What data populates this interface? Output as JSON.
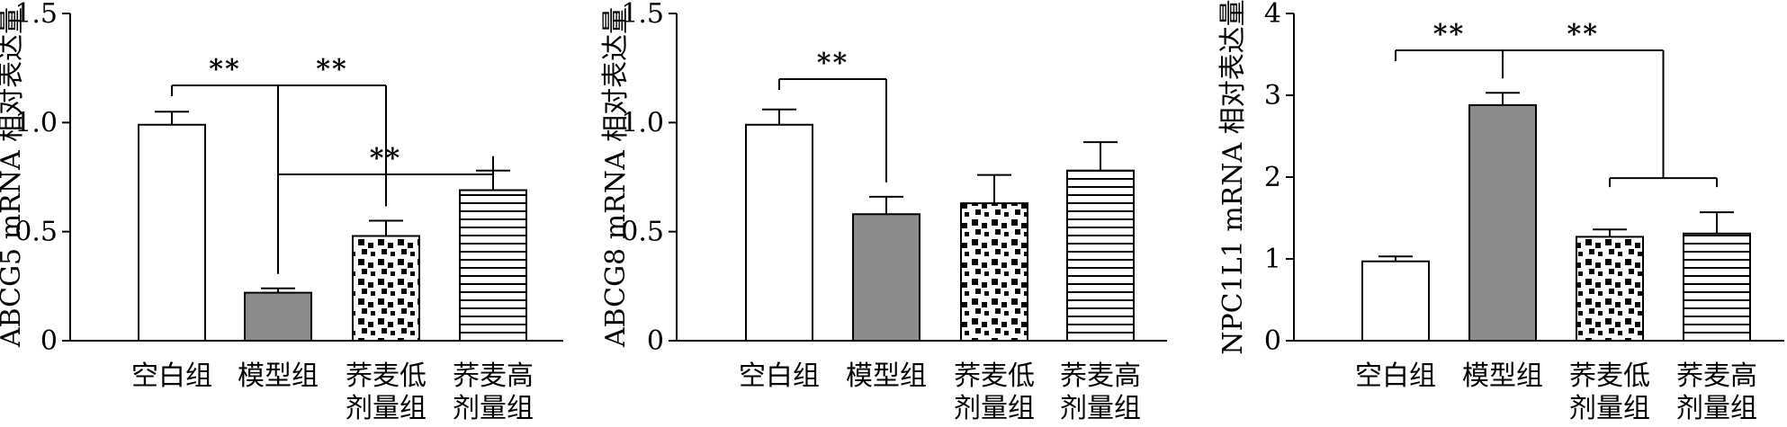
{
  "colors": {
    "model_fill": "#8c8c8c",
    "outline": "#000000",
    "background": "#ffffff"
  },
  "chart_data": [
    {
      "type": "bar",
      "ylabel": "ABCG5 mRNA 相对表达量",
      "ylim": [
        0,
        1.5
      ],
      "yticks": [
        "0",
        "0.5",
        "1.0",
        "1.5"
      ],
      "categories": [
        [
          "空白组"
        ],
        [
          "模型组"
        ],
        [
          "荞麦低",
          "剂量组"
        ],
        [
          "荞麦高",
          "剂量组"
        ]
      ],
      "values": [
        0.99,
        0.22,
        0.48,
        0.69
      ],
      "errors": [
        0.06,
        0.02,
        0.07,
        0.09
      ],
      "fills": [
        "white",
        "gray",
        "dots",
        "hlines"
      ],
      "significance": [
        {
          "from": 0,
          "to": 1,
          "label": "**"
        },
        {
          "from": 1,
          "to": 2,
          "label": "**"
        },
        {
          "from": 1,
          "to": 3,
          "label": "**"
        }
      ]
    },
    {
      "type": "bar",
      "ylabel": "ABCG8 mRNA 相对表达量",
      "ylim": [
        0,
        1.5
      ],
      "yticks": [
        "0",
        "0.5",
        "1.0",
        "1.5"
      ],
      "categories": [
        [
          "空白组"
        ],
        [
          "模型组"
        ],
        [
          "荞麦低",
          "剂量组"
        ],
        [
          "荞麦高",
          "剂量组"
        ]
      ],
      "values": [
        0.99,
        0.58,
        0.63,
        0.78
      ],
      "errors": [
        0.07,
        0.08,
        0.13,
        0.13
      ],
      "fills": [
        "white",
        "gray",
        "dots",
        "hlines"
      ],
      "significance": [
        {
          "from": 0,
          "to": 1,
          "label": "**"
        }
      ]
    },
    {
      "type": "bar",
      "ylabel": "NPC1L1 mRNA 相对表达量",
      "ylim": [
        0,
        4
      ],
      "yticks": [
        "0",
        "1",
        "2",
        "3",
        "4"
      ],
      "categories": [
        [
          "空白组"
        ],
        [
          "模型组"
        ],
        [
          "荞麦低",
          "剂量组"
        ],
        [
          "荞麦高",
          "剂量组"
        ]
      ],
      "values": [
        0.97,
        2.88,
        1.27,
        1.31
      ],
      "errors": [
        0.06,
        0.15,
        0.09,
        0.26
      ],
      "fills": [
        "white",
        "gray",
        "dots",
        "hlines"
      ],
      "significance": [
        {
          "from": 0,
          "to": 1,
          "label": "**"
        },
        {
          "from": 1,
          "to": [
            2,
            3
          ],
          "label": "**"
        }
      ]
    }
  ]
}
